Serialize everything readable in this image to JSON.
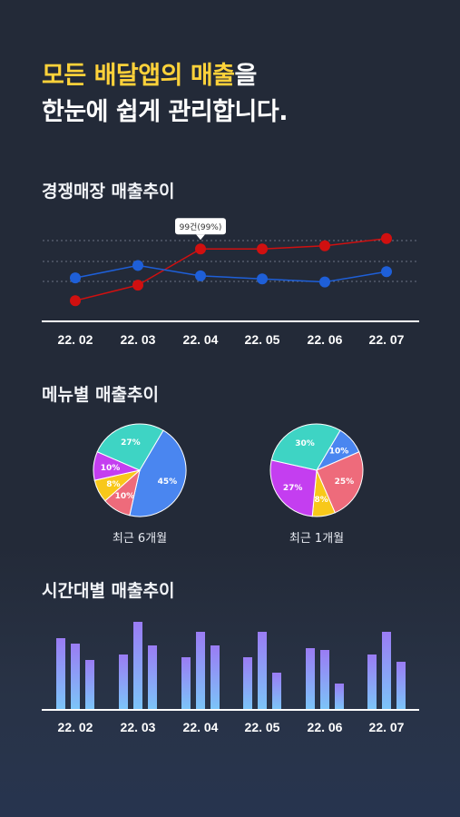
{
  "headline": {
    "part1": "모든 배달앱의 매출",
    "part2": "을",
    "line2": "한눈에 쉽게 관리합니다."
  },
  "sections": {
    "competitor": "경쟁매장 매출추이",
    "menu": "메뉴별 매출추이",
    "hourly": "시간대별 매출추이"
  },
  "colors": {
    "accent": "#ffd23a",
    "red_series": "#d01010",
    "blue_series": "#1e5fd8",
    "bar_top": "#9a7cf4",
    "bar_bottom": "#7cc4f8"
  },
  "chart_data": [
    {
      "type": "line",
      "categories": [
        "22. 02",
        "22. 03",
        "22. 04",
        "22. 05",
        "22. 06",
        "22. 07"
      ],
      "series": [
        {
          "values": [
            20,
            35,
            70,
            70,
            73,
            80
          ],
          "color": "#d01010"
        },
        {
          "values": [
            42,
            54,
            44,
            41,
            38,
            48
          ],
          "color": "#1e5fd8"
        }
      ],
      "ylim": [
        0,
        100
      ],
      "grid": true,
      "annotation": {
        "label": "99건(99%)",
        "index": 2
      }
    },
    {
      "type": "pie",
      "title": "최근 6개월",
      "slices": [
        {
          "label": "45%",
          "value": 45,
          "color": "#4a86f0"
        },
        {
          "label": "10%",
          "value": 10,
          "color": "#ee6b7b"
        },
        {
          "label": "8%",
          "value": 8,
          "color": "#f8c81a"
        },
        {
          "label": "10%",
          "value": 10,
          "color": "#c43ef0"
        },
        {
          "label": "27%",
          "value": 27,
          "color": "#3ed4c4"
        }
      ]
    },
    {
      "type": "pie",
      "title": "최근 1개월",
      "slices": [
        {
          "label": "10%",
          "value": 10,
          "color": "#4a86f0"
        },
        {
          "label": "25%",
          "value": 25,
          "color": "#ee6b7b"
        },
        {
          "label": "8%",
          "value": 8,
          "color": "#f8c81a"
        },
        {
          "label": "27%",
          "value": 27,
          "color": "#c43ef0"
        },
        {
          "label": "30%",
          "value": 30,
          "color": "#3ed4c4"
        }
      ]
    },
    {
      "type": "bar",
      "categories": [
        "22. 02",
        "22. 03",
        "22. 04",
        "22. 05",
        "22. 06",
        "22. 07"
      ],
      "series": [
        {
          "values": [
            78,
            60,
            57,
            57,
            67,
            60
          ]
        },
        {
          "values": [
            72,
            96,
            85,
            85,
            65,
            85
          ]
        },
        {
          "values": [
            54,
            70,
            70,
            40,
            28,
            52
          ]
        }
      ],
      "ylim": [
        0,
        100
      ]
    }
  ]
}
